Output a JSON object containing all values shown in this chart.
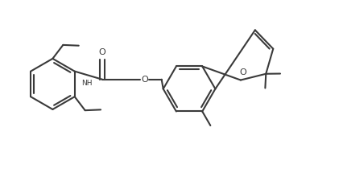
{
  "bg_color": "#ffffff",
  "line_color": "#3a3a3a",
  "line_width": 1.5,
  "figsize": [
    4.26,
    2.25
  ],
  "dpi": 100,
  "xlim": [
    0,
    10.5
  ],
  "ylim": [
    0,
    5.0
  ]
}
